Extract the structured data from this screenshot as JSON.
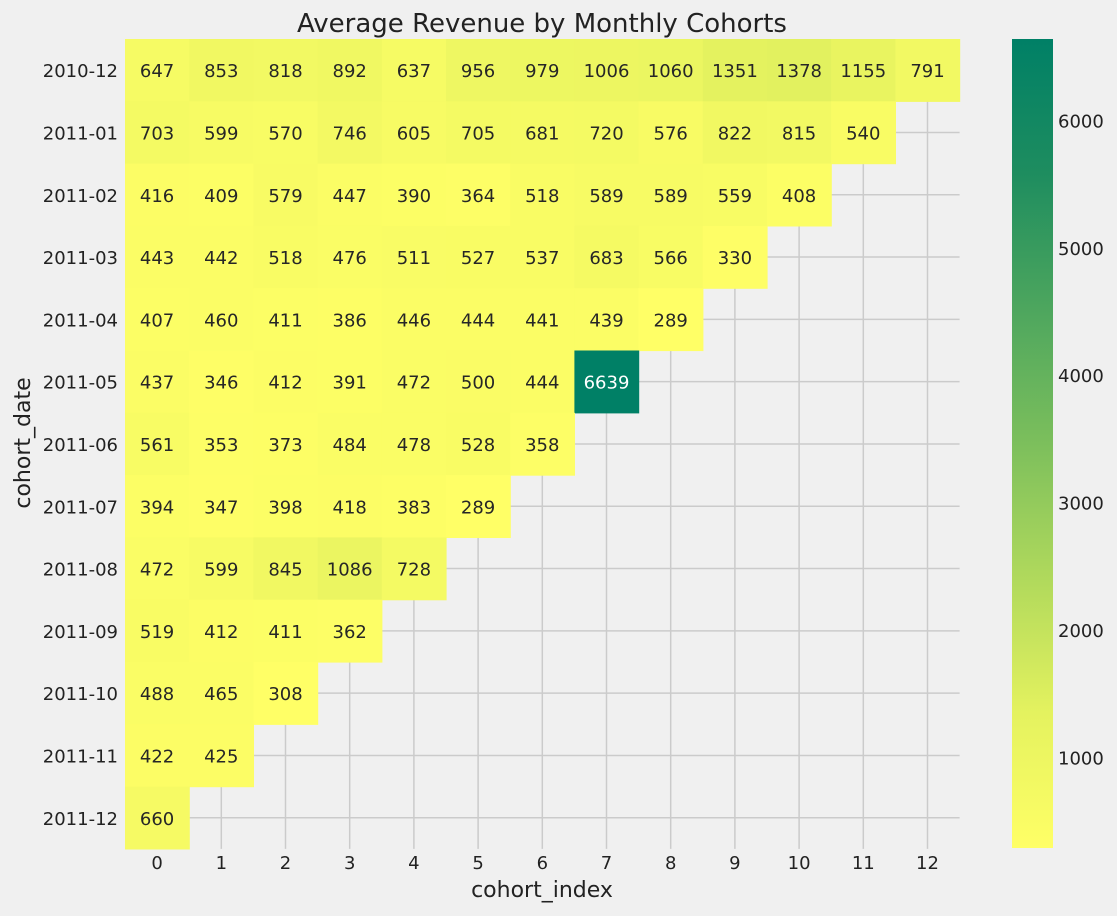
{
  "chart_data": {
    "type": "heatmap",
    "title": "Average Revenue by Monthly Cohorts",
    "xlabel": "cohort_index",
    "ylabel": "cohort_date",
    "x_categories": [
      "0",
      "1",
      "2",
      "3",
      "4",
      "5",
      "6",
      "7",
      "8",
      "9",
      "10",
      "11",
      "12"
    ],
    "y_categories": [
      "2010-12",
      "2011-01",
      "2011-02",
      "2011-03",
      "2011-04",
      "2011-05",
      "2011-06",
      "2011-07",
      "2011-08",
      "2011-09",
      "2011-10",
      "2011-11",
      "2011-12"
    ],
    "values": [
      [
        647,
        853,
        818,
        892,
        637,
        956,
        979,
        1006,
        1060,
        1351,
        1378,
        1155,
        791
      ],
      [
        703,
        599,
        570,
        746,
        605,
        705,
        681,
        720,
        576,
        822,
        815,
        540
      ],
      [
        416,
        409,
        579,
        447,
        390,
        364,
        518,
        589,
        589,
        559,
        408
      ],
      [
        443,
        442,
        518,
        476,
        511,
        527,
        537,
        683,
        566,
        330
      ],
      [
        407,
        460,
        411,
        386,
        446,
        444,
        441,
        439,
        289
      ],
      [
        437,
        346,
        412,
        391,
        472,
        500,
        444,
        6639
      ],
      [
        561,
        353,
        373,
        484,
        478,
        528,
        358
      ],
      [
        394,
        347,
        398,
        418,
        383,
        289
      ],
      [
        472,
        599,
        845,
        1086,
        728
      ],
      [
        519,
        412,
        411,
        362
      ],
      [
        488,
        465,
        308
      ],
      [
        422,
        425
      ],
      [
        660
      ]
    ],
    "colormap": [
      "#ffff66",
      "#e4f25f",
      "#b0d95c",
      "#7cbf5c",
      "#4da65e",
      "#1e8d5f",
      "#008066"
    ],
    "vmin": 289,
    "vmax": 6639,
    "colorbar_ticks": [
      1000,
      2000,
      3000,
      4000,
      5000,
      6000
    ],
    "grid": true,
    "legend": "colorbar-right"
  }
}
